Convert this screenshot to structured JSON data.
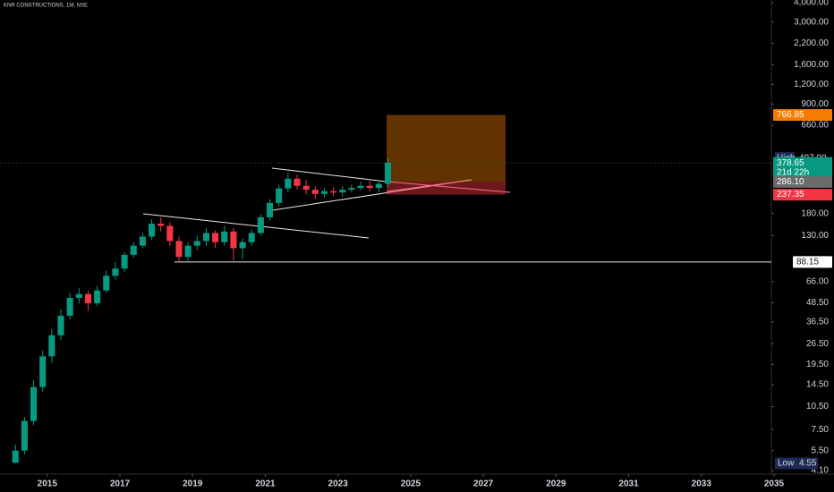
{
  "chart_data": {
    "type": "candlestick",
    "title": "KNR CONSTRUCTIONS, 1M, NSE",
    "log_scale": true,
    "up_color": "#089981",
    "down_color": "#f23645",
    "x": [
      2014.0,
      2014.25,
      2014.5,
      2014.75,
      2015.0,
      2015.25,
      2015.5,
      2015.75,
      2016.0,
      2016.25,
      2016.5,
      2016.75,
      2017.0,
      2017.25,
      2017.5,
      2017.75,
      2018.0,
      2018.25,
      2018.5,
      2018.75,
      2019.0,
      2019.25,
      2019.5,
      2019.75,
      2020.0,
      2020.25,
      2020.5,
      2020.75,
      2021.0,
      2021.25,
      2021.5,
      2021.75,
      2022.0,
      2022.25,
      2022.5,
      2022.75,
      2023.0,
      2023.25,
      2023.5,
      2023.75,
      2024.0,
      2024.25
    ],
    "open": [
      4.6,
      5.5,
      8.5,
      14,
      22,
      30,
      40,
      52,
      55,
      48,
      58,
      72,
      80,
      98,
      112,
      128,
      155,
      150,
      120,
      95,
      112,
      120,
      135,
      118,
      138,
      108,
      118,
      135,
      170,
      210,
      260,
      300,
      270,
      255,
      240,
      250,
      245,
      255,
      262,
      270,
      262,
      278
    ],
    "high": [
      6,
      9,
      15.5,
      24,
      33,
      44,
      56,
      60,
      58,
      62,
      78,
      88,
      102,
      118,
      135,
      165,
      170,
      158,
      128,
      118,
      130,
      145,
      140,
      150,
      145,
      125,
      142,
      178,
      222,
      275,
      326,
      318,
      295,
      268,
      262,
      265,
      268,
      275,
      288,
      290,
      295,
      407
    ],
    "low": [
      4.55,
      5.2,
      8,
      13,
      20,
      28,
      38,
      48,
      43,
      46,
      56,
      68,
      76,
      94,
      108,
      122,
      138,
      112,
      88.15,
      90,
      105,
      112,
      108,
      112,
      90,
      92,
      112,
      130,
      162,
      200,
      245,
      255,
      240,
      222,
      228,
      232,
      230,
      245,
      252,
      250,
      245,
      265
    ],
    "close": [
      5.5,
      8.5,
      14,
      22,
      30,
      40,
      52,
      55,
      48,
      58,
      72,
      80,
      98,
      112,
      128,
      155,
      150,
      120,
      95,
      112,
      120,
      135,
      118,
      138,
      108,
      118,
      135,
      170,
      210,
      260,
      300,
      270,
      255,
      240,
      250,
      245,
      255,
      262,
      270,
      262,
      278,
      378.65
    ],
    "xlim": [
      2013.7,
      2036.65
    ],
    "xticks": [
      2015,
      2017,
      2019,
      2021,
      2023,
      2025,
      2027,
      2029,
      2031,
      2033,
      2035
    ],
    "ylim": [
      3.89,
      4159
    ],
    "yticks": [
      {
        "value": 4000,
        "label": "4,000.00"
      },
      {
        "value": 3000,
        "label": "3,000.00"
      },
      {
        "value": 2200,
        "label": "2,200.00"
      },
      {
        "value": 1600,
        "label": "1,600.00"
      },
      {
        "value": 1200,
        "label": "1,200.00"
      },
      {
        "value": 900,
        "label": "900.00"
      },
      {
        "value": 660,
        "label": "660.00"
      },
      {
        "value": 180,
        "label": "180.00"
      },
      {
        "value": 130,
        "label": "130.00"
      },
      {
        "value": 66,
        "label": "66.00"
      },
      {
        "value": 48.5,
        "label": "48.50"
      },
      {
        "value": 36.5,
        "label": "36.50"
      },
      {
        "value": 26.5,
        "label": "26.50"
      },
      {
        "value": 19.5,
        "label": "19.50"
      },
      {
        "value": 14.5,
        "label": "14.50"
      },
      {
        "value": 10.5,
        "label": "10.50"
      },
      {
        "value": 7.5,
        "label": "7.50"
      },
      {
        "value": 5.5,
        "label": "5.50"
      },
      {
        "value": 4.1,
        "label": "4.10"
      }
    ],
    "high_tag": {
      "name": "High",
      "value": 407,
      "label": "407.00",
      "color": "#1e2a55"
    },
    "low_tag": {
      "name": "Low",
      "value": 4.55,
      "label": "4.55",
      "color": "#1e2a55"
    },
    "last_price": {
      "value": 378.65,
      "label": "378.65",
      "countdown": "21d 22h",
      "color": "#089981"
    },
    "position": {
      "target": {
        "value": 766.85,
        "label": "766.85",
        "color": "#f57c00"
      },
      "entry": {
        "value": 286.1,
        "label": "286.10",
        "color": "#6b6b6b"
      },
      "stop": {
        "value": 237.35,
        "label": "237.35",
        "color": "#f23645"
      }
    },
    "level": {
      "value": 88.15,
      "label": "88.15"
    }
  }
}
